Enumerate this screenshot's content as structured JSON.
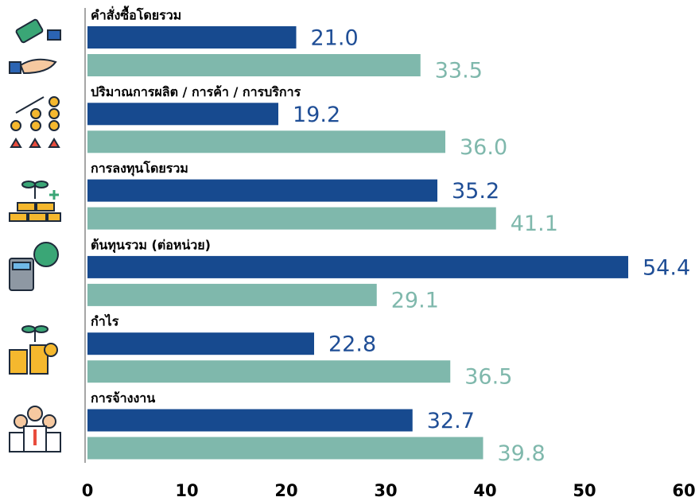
{
  "chart_data": {
    "type": "bar",
    "orientation": "horizontal",
    "categories": [
      "คำสั่งซื้อโดยรวม",
      "ปริมาณการผลิต / การค้า / การบริการ",
      "การลงทุนโดยรวม",
      "ต้นทุนรวม (ต่อหน่วย)",
      "กำไร",
      "การจ้างงาน"
    ],
    "series": [
      {
        "color": "#174a8f",
        "label_color": "#1f4e96",
        "values": [
          21.0,
          19.2,
          35.2,
          54.4,
          22.8,
          32.7
        ],
        "value_labels": [
          "21.0",
          "19.2",
          "35.2",
          "54.4",
          "22.8",
          "32.7"
        ]
      },
      {
        "color": "#7fb8ac",
        "label_color": "#7fb8ac",
        "values": [
          33.5,
          36.0,
          41.1,
          29.1,
          36.5,
          39.8
        ],
        "value_labels": [
          "33.5",
          "36.0",
          "41.1",
          "29.1",
          "36.5",
          "39.8"
        ]
      }
    ],
    "xlim": [
      0,
      60
    ],
    "xticks": [
      0,
      10,
      20,
      30,
      40,
      50,
      60
    ],
    "grid": false
  }
}
